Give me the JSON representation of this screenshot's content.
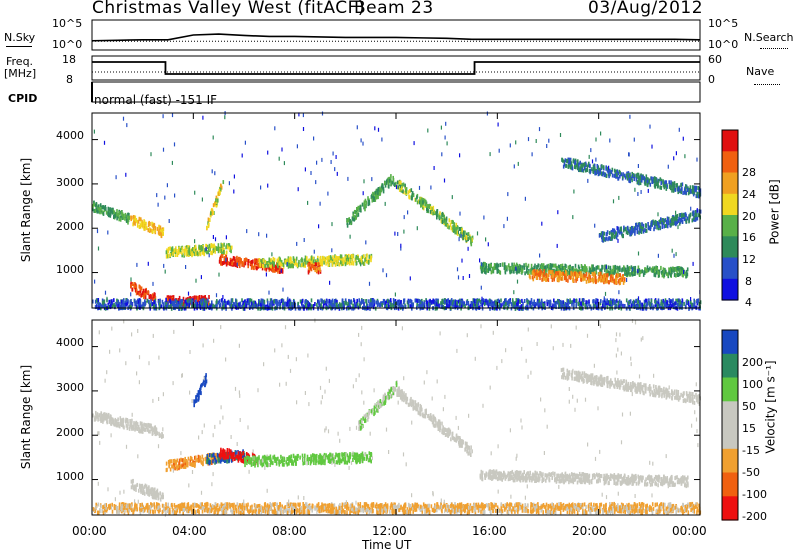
{
  "header": {
    "station": "Christmas Valley West (fitACF)",
    "beam": "Beam 23",
    "date": "03/Aug/2012"
  },
  "mini_labels": {
    "nsky": "N.Sky",
    "nsearch": "N.Search",
    "freq": "Freq.",
    "mhz": "[MHz]",
    "nave": "Nave",
    "cpid": "CPID",
    "cpid_value": "normal (fast) -151 IF"
  },
  "colors": {
    "power_scale": [
      "#1010e0",
      "#2850c8",
      "#2e8a5a",
      "#58b048",
      "#f0d820",
      "#f0a020",
      "#f06010",
      "#e01010"
    ],
    "velocity_scale": [
      "#ee1010",
      "#f06010",
      "#f0a030",
      "#c8c8c0",
      "#c8c8c0",
      "#60c840",
      "#2a8a60",
      "#1848c0"
    ]
  },
  "chart_data": [
    {
      "type": "line",
      "title": "N.Sky / N.Search",
      "ylabel_left": "N.Sky",
      "ylabel_right": "N.Search",
      "left_ticks": [
        "10^5",
        "10^0"
      ],
      "right_ticks": [
        "10^5",
        "10^0"
      ],
      "x_hours": [
        0,
        1,
        2,
        3,
        4,
        5,
        6,
        7,
        8,
        9,
        10,
        11,
        12,
        13,
        14,
        15,
        16,
        17,
        18,
        19,
        20,
        21,
        22,
        23,
        24
      ],
      "nsky_log10": [
        1.3,
        1.4,
        1.5,
        1.5,
        2.5,
        2.7,
        2.4,
        2.2,
        2.2,
        2.1,
        2.0,
        2.0,
        2.0,
        1.9,
        1.8,
        1.6,
        1.6,
        1.6,
        1.6,
        1.6,
        1.6,
        1.6,
        1.6,
        1.6,
        1.5
      ]
    },
    {
      "type": "line",
      "title": "Freq / Nave",
      "ylabel_left": "Freq. [MHz]",
      "ylabel_right": "Nave",
      "left_ticks": [
        "18",
        "8"
      ],
      "right_ticks": [
        "60",
        "0"
      ],
      "freq_segments": [
        {
          "x_start": 0,
          "x_end": 2.9,
          "freq_mhz": 15.5
        },
        {
          "x_start": 2.9,
          "x_end": 15.1,
          "freq_mhz": 10.5
        },
        {
          "x_start": 15.1,
          "x_end": 24,
          "freq_mhz": 15.5
        }
      ],
      "nave": 20
    },
    {
      "type": "heatmap",
      "title": "Power",
      "xlabel": "",
      "ylabel": "Slant Range [km]",
      "ylim": [
        200,
        4600
      ],
      "yticks": [
        "1000",
        "2000",
        "3000",
        "4000"
      ],
      "colorbar_label": "Power [dB]",
      "colorbar_ticks": [
        "4",
        "8",
        "12",
        "16",
        "20",
        "24",
        "28"
      ],
      "features": [
        {
          "x_start": 0.0,
          "x_end": 1.5,
          "range_start_km": 2500,
          "range_end_km": 2200,
          "power_db": 12
        },
        {
          "x_start": 1.5,
          "x_end": 2.8,
          "range_start_km": 2200,
          "range_end_km": 1900,
          "power_db": 20
        },
        {
          "x_start": 1.5,
          "x_end": 2.5,
          "range_start_km": 700,
          "range_end_km": 400,
          "power_db": 28
        },
        {
          "x_start": 2.9,
          "x_end": 4.6,
          "range_start_km": 350,
          "range_end_km": 350,
          "power_db": 30
        },
        {
          "x_start": 2.9,
          "x_end": 5.5,
          "range_start_km": 1450,
          "range_end_km": 1550,
          "power_db": 16
        },
        {
          "x_start": 4.5,
          "x_end": 5.2,
          "range_start_km": 2000,
          "range_end_km": 3100,
          "power_db": 18
        },
        {
          "x_start": 5.0,
          "x_end": 7.5,
          "range_start_km": 1300,
          "range_end_km": 1100,
          "power_db": 28
        },
        {
          "x_start": 6.5,
          "x_end": 11.0,
          "range_start_km": 1200,
          "range_end_km": 1300,
          "power_db": 16
        },
        {
          "x_start": 8.5,
          "x_end": 9.0,
          "range_start_km": 1100,
          "range_end_km": 1100,
          "power_db": 26
        },
        {
          "x_start": 10.0,
          "x_end": 11.8,
          "range_start_km": 2100,
          "range_end_km": 3100,
          "power_db": 12
        },
        {
          "x_start": 11.8,
          "x_end": 15.0,
          "range_start_km": 3100,
          "range_end_km": 1700,
          "power_db": 14
        },
        {
          "x_start": 15.3,
          "x_end": 23.5,
          "range_start_km": 1100,
          "range_end_km": 1000,
          "power_db": 12
        },
        {
          "x_start": 17.2,
          "x_end": 21.0,
          "range_start_km": 950,
          "range_end_km": 850,
          "power_db": 24
        },
        {
          "x_start": 18.5,
          "x_end": 24.0,
          "range_start_km": 3500,
          "range_end_km": 2800,
          "power_db": 8
        },
        {
          "x_start": 20.0,
          "x_end": 24.0,
          "range_start_km": 1800,
          "range_end_km": 2300,
          "power_db": 8
        },
        {
          "x_start": 0.0,
          "x_end": 24.0,
          "range_start_km": 280,
          "range_end_km": 280,
          "power_db": 6
        }
      ]
    },
    {
      "type": "heatmap",
      "title": "Velocity",
      "xlabel": "Time UT",
      "ylabel": "Slant Range [km]",
      "ylim": [
        200,
        4600
      ],
      "yticks": [
        "1000",
        "2000",
        "3000",
        "4000"
      ],
      "xticks": [
        "00:00",
        "04:00",
        "08:00",
        "12:00",
        "16:00",
        "20:00",
        "00:00"
      ],
      "colorbar_label": "Velocity [m s⁻¹]",
      "colorbar_ticks": [
        "200",
        "100",
        "50",
        "15",
        "-15",
        "-50",
        "-100",
        "-200"
      ],
      "features": [
        {
          "x_start": 0.0,
          "x_end": 2.8,
          "range_start_km": 2450,
          "range_end_km": 2050,
          "velocity_ms": 0
        },
        {
          "x_start": 1.5,
          "x_end": 2.8,
          "range_start_km": 900,
          "range_end_km": 600,
          "velocity_ms": 0
        },
        {
          "x_start": 2.9,
          "x_end": 5.0,
          "range_start_km": 1300,
          "range_end_km": 1500,
          "velocity_ms": -60
        },
        {
          "x_start": 4.5,
          "x_end": 6.0,
          "range_start_km": 1450,
          "range_end_km": 1550,
          "velocity_ms": 150
        },
        {
          "x_start": 5.0,
          "x_end": 6.5,
          "range_start_km": 1600,
          "range_end_km": 1450,
          "velocity_ms": -200
        },
        {
          "x_start": 4.0,
          "x_end": 4.5,
          "range_start_km": 2700,
          "range_end_km": 3300,
          "velocity_ms": 220
        },
        {
          "x_start": 6.0,
          "x_end": 11.0,
          "range_start_km": 1400,
          "range_end_km": 1500,
          "velocity_ms": 50
        },
        {
          "x_start": 10.5,
          "x_end": 12.0,
          "range_start_km": 2200,
          "range_end_km": 3100,
          "velocity_ms": 30
        },
        {
          "x_start": 12.0,
          "x_end": 15.0,
          "range_start_km": 3000,
          "range_end_km": 1600,
          "velocity_ms": 0
        },
        {
          "x_start": 15.3,
          "x_end": 23.5,
          "range_start_km": 1100,
          "range_end_km": 950,
          "velocity_ms": 0
        },
        {
          "x_start": 18.5,
          "x_end": 24.0,
          "range_start_km": 3400,
          "range_end_km": 2800,
          "velocity_ms": 0
        },
        {
          "x_start": 0.0,
          "x_end": 24.0,
          "range_start_km": 350,
          "range_end_km": 350,
          "velocity_ms": -40
        }
      ]
    }
  ]
}
